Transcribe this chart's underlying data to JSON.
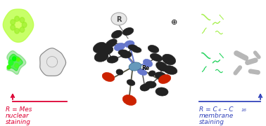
{
  "left_arrow_color": "#dd0033",
  "right_arrow_color": "#3344bb",
  "left_label_line1": "R = Mes",
  "left_label_line2": "nuclear",
  "left_label_line3": "staining",
  "right_label_line2": "membrane",
  "right_label_line3": "staining",
  "plus_symbol": "⊕",
  "font_size_label": 6.5,
  "font_size_plus": 8,
  "re_color": "#6699bb",
  "n_color": "#6677cc",
  "c_color": "#222222",
  "o_color": "#cc2200",
  "bond_color": "#6677cc"
}
